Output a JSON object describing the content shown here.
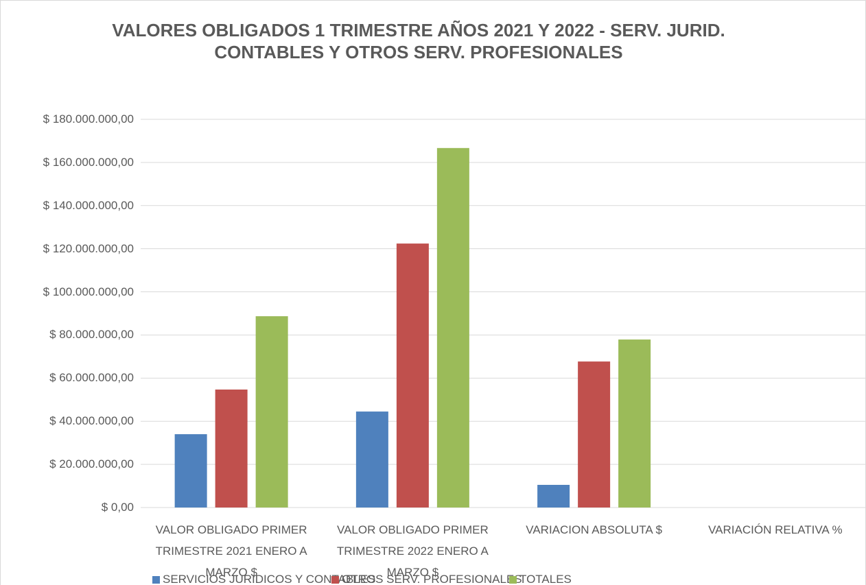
{
  "chart_data": {
    "type": "bar",
    "title": "VALORES OBLIGADOS 1 TRIMESTRE AÑOS 2021 Y 2022 - SERV. JURID. CONTABLES Y OTROS SERV. PROFESIONALES",
    "categories": [
      "VALOR OBLIGADO PRIMER TRIMESTRE 2021 ENERO A MARZO $",
      "VALOR OBLIGADO PRIMER TRIMESTRE 2022 ENERO A MARZO $",
      "VARIACION ABSOLUTA $",
      "VARIACIÓN RELATIVA %"
    ],
    "series": [
      {
        "name": "SERVICIOS JURIDICOS Y CONTABLES",
        "color": "#4f81bd",
        "values": [
          34000000,
          44500000,
          10500000,
          null
        ]
      },
      {
        "name": "OTROS SERV. PROFESIONALES",
        "color": "#c0504d",
        "values": [
          54700000,
          122400000,
          67700000,
          null
        ]
      },
      {
        "name": "TOTALES",
        "color": "#9bbb59",
        "values": [
          88700000,
          166700000,
          77900000,
          null
        ]
      }
    ],
    "ylim": [
      0,
      180000000
    ],
    "yticks": [
      {
        "value": 0,
        "label": "$ 0,00"
      },
      {
        "value": 20000000,
        "label": "$ 20.000.000,00"
      },
      {
        "value": 40000000,
        "label": "$ 40.000.000,00"
      },
      {
        "value": 60000000,
        "label": "$ 60.000.000,00"
      },
      {
        "value": 80000000,
        "label": "$ 80.000.000,00"
      },
      {
        "value": 100000000,
        "label": "$ 100.000.000,00"
      },
      {
        "value": 120000000,
        "label": "$ 120.000.000,00"
      },
      {
        "value": 140000000,
        "label": "$ 140.000.000,00"
      },
      {
        "value": 160000000,
        "label": "$ 160.000.000,00"
      },
      {
        "value": 180000000,
        "label": "$ 180.000.000,00"
      }
    ],
    "grid": true
  }
}
